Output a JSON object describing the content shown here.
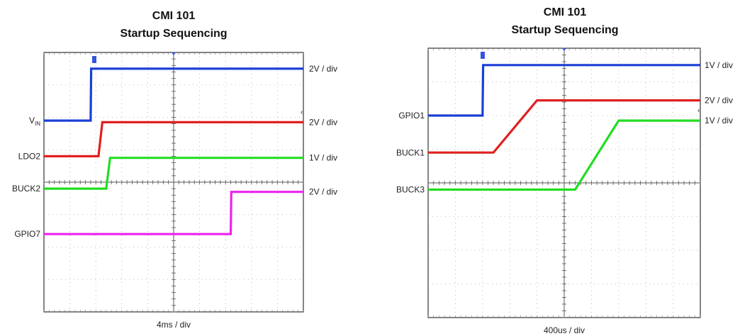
{
  "chart_data": [
    {
      "type": "line",
      "title": "CMI  101",
      "subtitle": "Startup Sequencing",
      "xlabel": "4ms / div",
      "x_divisions": 10,
      "y_divisions": 8,
      "x_unit": "div",
      "grid": true,
      "series": [
        {
          "name": "VIN",
          "label_main": "V",
          "label_sub": "IN",
          "color": "#1a3fd6",
          "scale": "2V / div",
          "points": [
            [
              0,
              5.9
            ],
            [
              1.8,
              5.9
            ],
            [
              1.82,
              7.5
            ],
            [
              10,
              7.5
            ]
          ]
        },
        {
          "name": "LDO2",
          "label_main": "LDO2",
          "label_sub": "",
          "color": "#e02020",
          "scale": "2V / div",
          "points": [
            [
              0,
              4.8
            ],
            [
              2.1,
              4.8
            ],
            [
              2.25,
              5.85
            ],
            [
              10,
              5.85
            ]
          ]
        },
        {
          "name": "BUCK2",
          "label_main": "BUCK2",
          "label_sub": "",
          "color": "#22dd22",
          "scale": "1V / div",
          "points": [
            [
              0,
              3.8
            ],
            [
              2.4,
              3.8
            ],
            [
              2.55,
              4.75
            ],
            [
              10,
              4.75
            ]
          ]
        },
        {
          "name": "GPIO7",
          "label_main": "GPIO7",
          "label_sub": "",
          "color": "#ee22ee",
          "scale": "2V / div",
          "points": [
            [
              0,
              2.4
            ],
            [
              7.2,
              2.4
            ],
            [
              7.22,
              3.7
            ],
            [
              10,
              3.7
            ]
          ]
        }
      ]
    },
    {
      "type": "line",
      "title": "CMI  101",
      "subtitle": "Startup Sequencing",
      "xlabel": "400us / div",
      "x_divisions": 10,
      "y_divisions": 8,
      "x_unit": "div",
      "grid": true,
      "series": [
        {
          "name": "GPIO1",
          "label_main": "GPIO1",
          "label_sub": "",
          "color": "#1a3fd6",
          "scale": "1V / div",
          "points": [
            [
              0,
              6.0
            ],
            [
              2.0,
              6.0
            ],
            [
              2.02,
              7.5
            ],
            [
              10,
              7.5
            ]
          ]
        },
        {
          "name": "BUCK1",
          "label_main": "BUCK1",
          "label_sub": "",
          "color": "#e02020",
          "scale": "2V / div",
          "points": [
            [
              0,
              4.9
            ],
            [
              2.4,
              4.9
            ],
            [
              4.0,
              6.45
            ],
            [
              10,
              6.45
            ]
          ]
        },
        {
          "name": "BUCK3",
          "label_main": "BUCK3",
          "label_sub": "",
          "color": "#22dd22",
          "scale": "1V / div",
          "points": [
            [
              0,
              3.8
            ],
            [
              5.4,
              3.8
            ],
            [
              7.0,
              5.85
            ],
            [
              10,
              5.85
            ]
          ]
        }
      ]
    }
  ]
}
